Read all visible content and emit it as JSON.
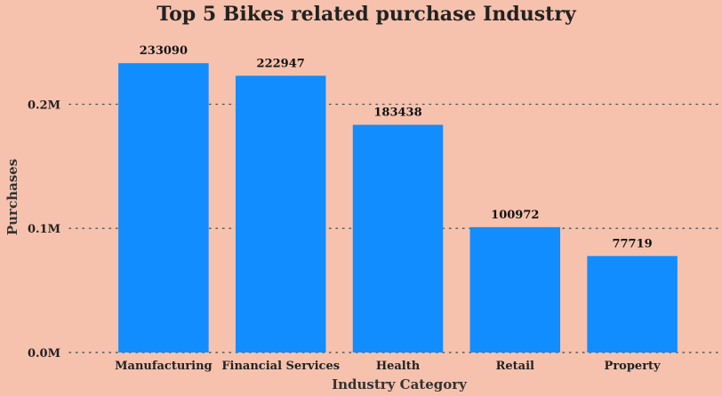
{
  "chart_data": {
    "type": "bar",
    "title": "Top 5 Bikes related purchase Industry",
    "xlabel": "Industry Category",
    "ylabel": "Purchases",
    "categories": [
      "Manufacturing",
      "Financial Services",
      "Health",
      "Retail",
      "Property"
    ],
    "values": [
      233090,
      222947,
      183438,
      100972,
      77719
    ],
    "data_labels": [
      "233090",
      "222947",
      "183438",
      "100972",
      "77719"
    ],
    "ylim": [
      0,
      250000
    ],
    "yticks": [
      {
        "value": 0,
        "label": "0.0M"
      },
      {
        "value": 100000,
        "label": "0.1M"
      },
      {
        "value": 200000,
        "label": "0.2M"
      }
    ],
    "grid": true,
    "legend": "none",
    "colors": {
      "bar": "#118dff",
      "background": "#f6c2ad"
    }
  }
}
